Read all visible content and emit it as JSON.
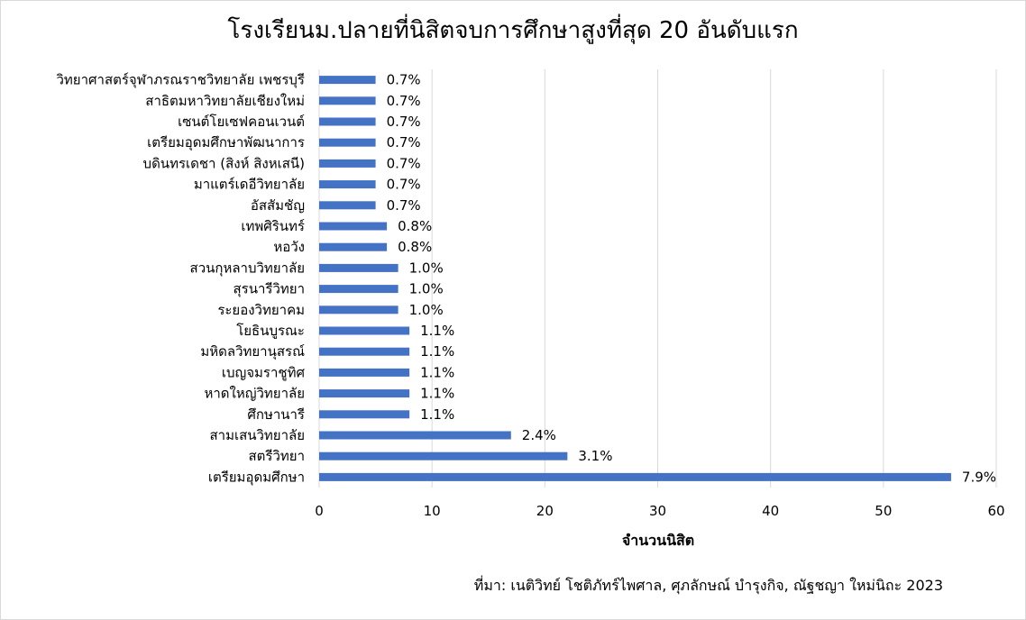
{
  "chart_data": {
    "type": "bar",
    "orientation": "horizontal",
    "title": "โรงเรียนม.ปลายที่นิสิตจบการศึกษาสูงที่สุด 20 อันดับแรก",
    "xlabel": "จำนวนนิสิต",
    "ylabel": "",
    "xlim": [
      0,
      60
    ],
    "x_ticks": [
      0,
      10,
      20,
      30,
      40,
      50,
      60
    ],
    "grid": true,
    "bar_color": "#4472C4",
    "categories": [
      "วิทยาศาสตร์จุฬาภรณราชวิทยาลัย เพชรบุรี",
      "สาธิตมหาวิทยาลัยเชียงใหม่",
      "เซนต์โยเซฟคอนเวนต์",
      "เตรียมอุดมศึกษาพัฒนาการ",
      "บดินทรเดชา (สิงห์ สิงหเสนี)",
      "มาแตร์เดอีวิทยาลัย",
      "อัสสัมชัญ",
      "เทพศิรินทร์",
      "หอวัง",
      "สวนกุหลาบวิทยาลัย",
      "สุรนารีวิทยา",
      "ระยองวิทยาคม",
      "โยธินบูรณะ",
      "มหิดลวิทยานุสรณ์",
      "เบญจมราชูทิศ",
      "หาดใหญ่วิทยาลัย",
      "ศึกษานารี",
      "สามเสนวิทยาลัย",
      "สตรีวิทยา",
      "เตรียมอุดมศึกษา"
    ],
    "values": [
      5,
      5,
      5,
      5,
      5,
      5,
      5,
      6,
      6,
      7,
      7,
      7,
      8,
      8,
      8,
      8,
      8,
      17,
      22,
      56
    ],
    "data_labels": [
      "0.7%",
      "0.7%",
      "0.7%",
      "0.7%",
      "0.7%",
      "0.7%",
      "0.7%",
      "0.8%",
      "0.8%",
      "1.0%",
      "1.0%",
      "1.0%",
      "1.1%",
      "1.1%",
      "1.1%",
      "1.1%",
      "1.1%",
      "2.4%",
      "3.1%",
      "7.9%"
    ]
  },
  "source": "ที่มา: เนติวิทย์ โชติภัทร์ไพศาล, ศุภลักษณ์ บำรุงกิจ, ณัฐชญา ใหม่นิถะ 2023"
}
